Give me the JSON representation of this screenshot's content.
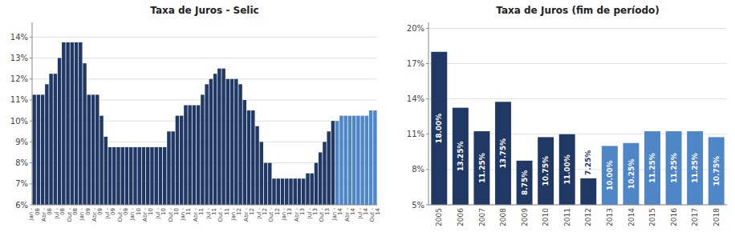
{
  "chart_data": [
    {
      "type": "bar",
      "title": "Taxa de Juros - Selic",
      "categories": [
        "Jan -\n08",
        null,
        null,
        "Abr -\n08",
        null,
        null,
        "Jul -\n08",
        null,
        null,
        "Out -\n08",
        null,
        null,
        "Jan -\n09",
        null,
        null,
        "Abr -\n09",
        null,
        null,
        "Jul -\n09",
        null,
        null,
        "Out -\n09",
        null,
        null,
        "Jan -\n10",
        null,
        null,
        "Abr -\n10",
        null,
        null,
        "Jul -\n10",
        null,
        null,
        "Out -\n10",
        null,
        null,
        "Jan -\n11",
        null,
        null,
        "Abr -\n11",
        null,
        null,
        "Jul -\n11",
        null,
        null,
        "Out -\n11",
        null,
        null,
        "Jan -\n12",
        null,
        null,
        "Abr -\n12",
        null,
        null,
        "Jul -\n12",
        null,
        null,
        "Out -\n12",
        null,
        null,
        "Jan -\n13",
        null,
        null,
        "Abr -\n13",
        null,
        null,
        "Jul -\n13",
        null,
        null,
        "Out -\n13",
        null,
        null,
        "Jan -\n14",
        null,
        null,
        "Abr -\n14",
        null,
        null,
        "Jul -\n14",
        null,
        null,
        "Out -\n14"
      ],
      "values": [
        11.25,
        11.25,
        11.25,
        11.75,
        12.25,
        12.25,
        13.0,
        13.75,
        13.75,
        13.75,
        13.75,
        13.75,
        12.75,
        11.25,
        11.25,
        11.25,
        10.25,
        9.25,
        8.75,
        8.75,
        8.75,
        8.75,
        8.75,
        8.75,
        8.75,
        8.75,
        8.75,
        8.75,
        8.75,
        8.75,
        8.75,
        8.75,
        9.5,
        9.5,
        10.25,
        10.25,
        10.75,
        10.75,
        10.75,
        10.75,
        11.25,
        11.75,
        12.0,
        12.25,
        12.5,
        12.5,
        12.0,
        12.0,
        12.0,
        11.75,
        11.0,
        10.5,
        10.5,
        9.75,
        9.0,
        8.0,
        8.0,
        7.25,
        7.25,
        7.25,
        7.25,
        7.25,
        7.25,
        7.25,
        7.25,
        7.5,
        7.5,
        8.0,
        8.5,
        9.0,
        9.5,
        10.0,
        10.0,
        10.25,
        10.25,
        10.25,
        10.25,
        10.25,
        10.25,
        10.25,
        10.5,
        10.5
      ],
      "colors": [
        "#1F3864",
        "#1F3864",
        "#1F3864",
        "#1F3864",
        "#1F3864",
        "#1F3864",
        "#1F3864",
        "#1F3864",
        "#1F3864",
        "#1F3864",
        "#1F3864",
        "#1F3864",
        "#1F3864",
        "#1F3864",
        "#1F3864",
        "#1F3864",
        "#1F3864",
        "#1F3864",
        "#1F3864",
        "#1F3864",
        "#1F3864",
        "#1F3864",
        "#1F3864",
        "#1F3864",
        "#1F3864",
        "#1F3864",
        "#1F3864",
        "#1F3864",
        "#1F3864",
        "#1F3864",
        "#1F3864",
        "#1F3864",
        "#1F3864",
        "#1F3864",
        "#1F3864",
        "#1F3864",
        "#1F3864",
        "#1F3864",
        "#1F3864",
        "#1F3864",
        "#1F3864",
        "#1F3864",
        "#1F3864",
        "#1F3864",
        "#1F3864",
        "#1F3864",
        "#1F3864",
        "#1F3864",
        "#1F3864",
        "#1F3864",
        "#1F3864",
        "#1F3864",
        "#1F3864",
        "#1F3864",
        "#1F3864",
        "#1F3864",
        "#1F3864",
        "#1F3864",
        "#1F3864",
        "#1F3864",
        "#1F3864",
        "#1F3864",
        "#1F3864",
        "#1F3864",
        "#1F3864",
        "#1F3864",
        "#1F3864",
        "#1F3864",
        "#1F3864",
        "#1F3864",
        "#1F3864",
        "#1F3864",
        "#4E86C8",
        "#4E86C8",
        "#4E86C8",
        "#4E86C8",
        "#4E86C8",
        "#4E86C8",
        "#4E86C8",
        "#4E86C8",
        "#4E86C8",
        "#4E86C8"
      ],
      "ylim": [
        6,
        14.7
      ],
      "yticks": [
        {
          "value": 6,
          "label": "6%"
        },
        {
          "value": 7,
          "label": "7%"
        },
        {
          "value": 8,
          "label": "8%"
        },
        {
          "value": 9,
          "label": "9%"
        },
        {
          "value": 10,
          "label": "10%"
        },
        {
          "value": 11,
          "label": "11%"
        },
        {
          "value": 12,
          "label": "12%"
        },
        {
          "value": 13,
          "label": "13%"
        },
        {
          "value": 14,
          "label": "14%"
        }
      ],
      "grid": true
    },
    {
      "type": "bar",
      "title": "Taxa de Juros (fim de período)",
      "categories": [
        "2005",
        "2006",
        "2007",
        "2008",
        "2009",
        "2010",
        "2011",
        "2012",
        "2013",
        "2014",
        "2015",
        "2016",
        "2017",
        "2018"
      ],
      "values": [
        18.0,
        13.25,
        11.25,
        13.75,
        8.75,
        10.75,
        11.0,
        7.25,
        10.0,
        10.25,
        11.25,
        11.25,
        11.25,
        10.75
      ],
      "value_labels": [
        "18.00%",
        "13.25%",
        "11.25%",
        "13.75%",
        "8.75%",
        "10.75%",
        "11.00%",
        "7.25%",
        "10.00%",
        "10.25%",
        "11.25%",
        "11.25%",
        "11.25%",
        "10.75%"
      ],
      "colors": [
        "#1F3864",
        "#1F3864",
        "#1F3864",
        "#1F3864",
        "#1F3864",
        "#1F3864",
        "#1F3864",
        "#1F3864",
        "#4E86C8",
        "#4E86C8",
        "#4E86C8",
        "#4E86C8",
        "#4E86C8",
        "#4E86C8"
      ],
      "ylim": [
        5,
        20.5
      ],
      "yticks": [
        {
          "value": 5,
          "label": "5%"
        },
        {
          "value": 8,
          "label": "8%"
        },
        {
          "value": 11,
          "label": "11%"
        },
        {
          "value": 14,
          "label": "14%"
        },
        {
          "value": 17,
          "label": "17%"
        },
        {
          "value": 20,
          "label": "20%"
        }
      ],
      "grid": true,
      "data_labels": true
    }
  ]
}
